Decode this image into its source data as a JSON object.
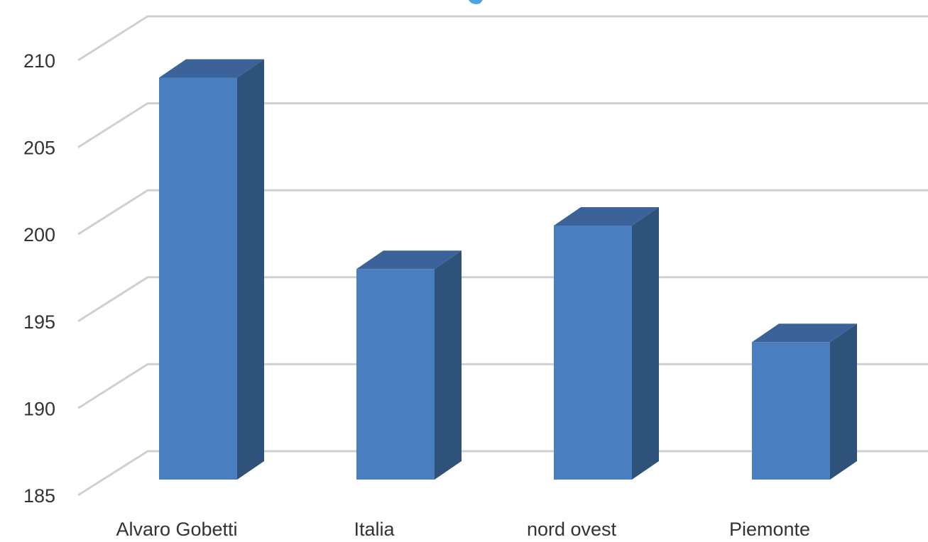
{
  "chart_data": {
    "type": "bar",
    "style": "3d-column",
    "categories": [
      "Alvaro Gobetti",
      "Italia",
      "nord ovest",
      "Piemonte"
    ],
    "series": [
      {
        "values": [
          209,
          198,
          200.5,
          193.8
        ]
      }
    ],
    "ylim": [
      185,
      210
    ],
    "yticks": [
      "185",
      "190",
      "195",
      "200",
      "205",
      "210"
    ],
    "grid": true,
    "legend": "none",
    "title": "",
    "xlabel": "",
    "ylabel": "",
    "colors": {
      "bar_front": "#4a7ebf",
      "bar_side": "#2f527b",
      "bar_top": "#3b6399",
      "grid": "#d0d0d0",
      "title_fragment": "#4ba3e3"
    }
  }
}
